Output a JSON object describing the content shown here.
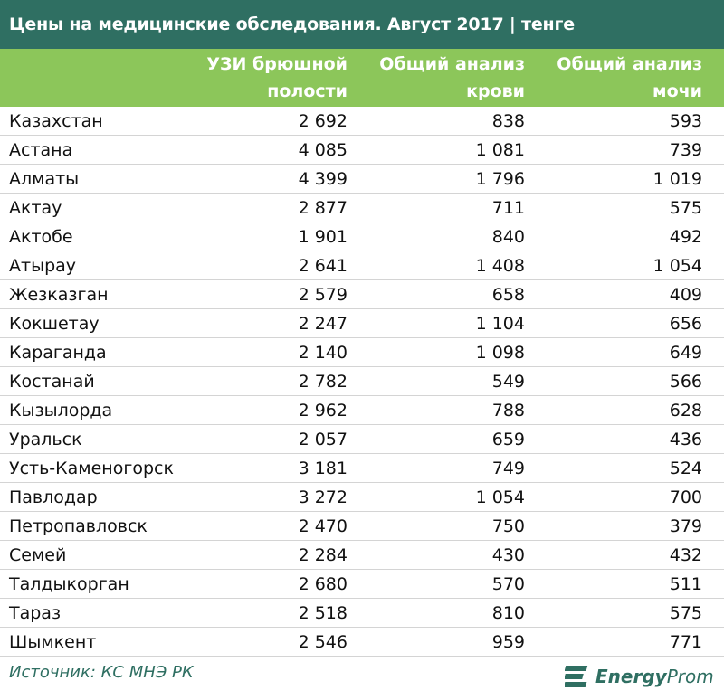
{
  "chart_data": {
    "type": "table",
    "title": "Цены на медицинские обследования. Август 2017 | тенге",
    "columns": [
      {
        "line1": "УЗИ брюшной",
        "line2": "полости"
      },
      {
        "line1": "Общий анализ",
        "line2": "крови"
      },
      {
        "line1": "Общий анализ",
        "line2": "мочи"
      }
    ],
    "rows": [
      {
        "city": "Казахстан",
        "values": [
          "2 692",
          "838",
          "593"
        ]
      },
      {
        "city": "Астана",
        "values": [
          "4 085",
          "1 081",
          "739"
        ]
      },
      {
        "city": "Алматы",
        "values": [
          "4 399",
          "1 796",
          "1 019"
        ]
      },
      {
        "city": "Актау",
        "values": [
          "2 877",
          "711",
          "575"
        ]
      },
      {
        "city": "Актобе",
        "values": [
          "1 901",
          "840",
          "492"
        ]
      },
      {
        "city": "Атырау",
        "values": [
          "2 641",
          "1 408",
          "1 054"
        ]
      },
      {
        "city": "Жезказган",
        "values": [
          "2 579",
          "658",
          "409"
        ]
      },
      {
        "city": "Кокшетау",
        "values": [
          "2 247",
          "1 104",
          "656"
        ]
      },
      {
        "city": "Караганда",
        "values": [
          "2 140",
          "1 098",
          "649"
        ]
      },
      {
        "city": "Костанай",
        "values": [
          "2 782",
          "549",
          "566"
        ]
      },
      {
        "city": "Кызылорда",
        "values": [
          "2 962",
          "788",
          "628"
        ]
      },
      {
        "city": "Уральск",
        "values": [
          "2 057",
          "659",
          "436"
        ]
      },
      {
        "city": "Усть-Каменогорск",
        "values": [
          "3 181",
          "749",
          "524"
        ]
      },
      {
        "city": "Павлодар",
        "values": [
          "3 272",
          "1 054",
          "700"
        ]
      },
      {
        "city": "Петропавловск",
        "values": [
          "2 470",
          "750",
          "379"
        ]
      },
      {
        "city": "Семей",
        "values": [
          "2 284",
          "430",
          "432"
        ]
      },
      {
        "city": "Талдыкорган",
        "values": [
          "2 680",
          "570",
          "511"
        ]
      },
      {
        "city": "Тараз",
        "values": [
          "2 518",
          "810",
          "575"
        ]
      },
      {
        "city": "Шымкент",
        "values": [
          "2 546",
          "959",
          "771"
        ]
      }
    ]
  },
  "footer": {
    "source": "Источник: КС МНЭ РК",
    "logo_part1": "Energy",
    "logo_part2": "Prom",
    "logo_icon": "energyprom-logo-icon"
  },
  "colors": {
    "title_bg": "#2f6f62",
    "header_bg": "#8cc65a",
    "accent_text": "#2f6f62"
  }
}
